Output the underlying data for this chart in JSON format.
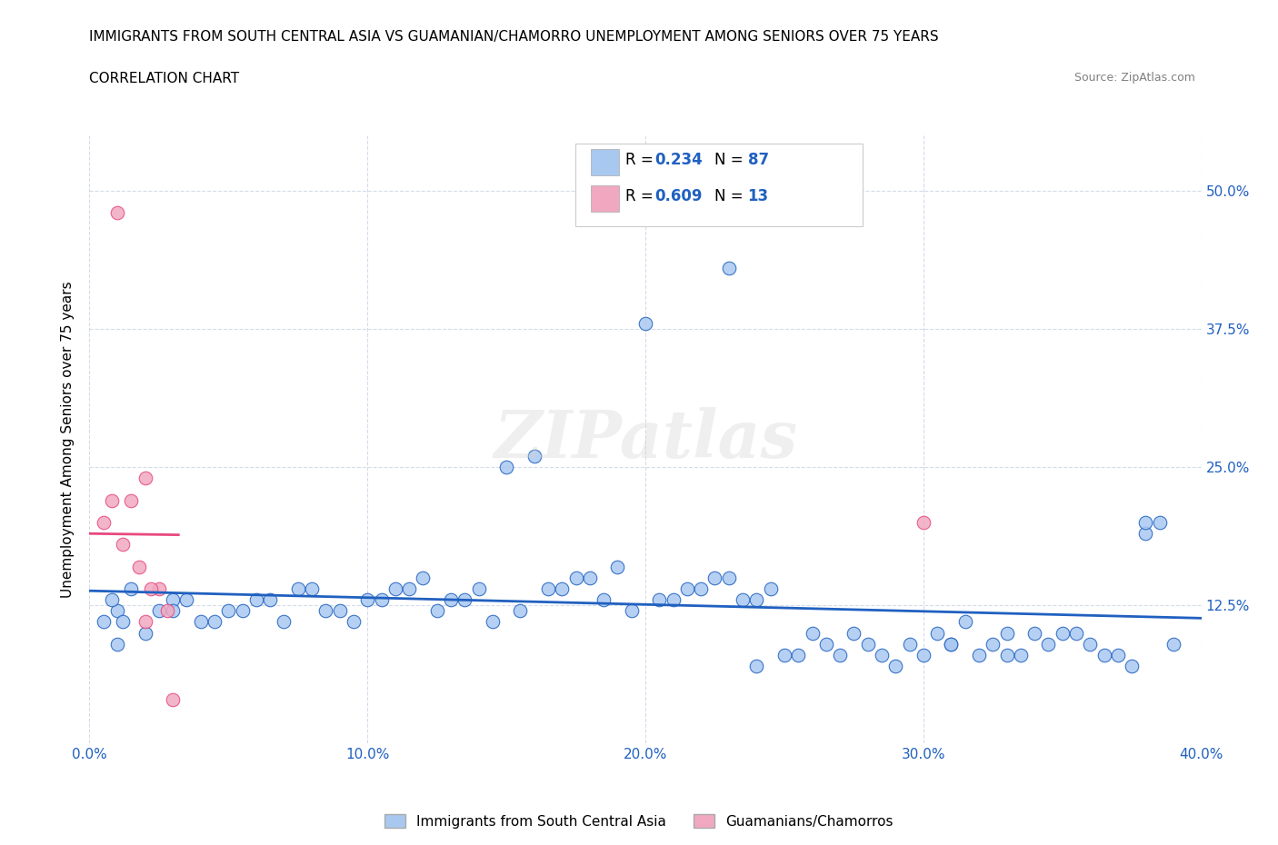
{
  "title_line1": "IMMIGRANTS FROM SOUTH CENTRAL ASIA VS GUAMANIAN/CHAMORRO UNEMPLOYMENT AMONG SENIORS OVER 75 YEARS",
  "title_line2": "CORRELATION CHART",
  "source_text": "Source: ZipAtlas.com",
  "ylabel": "Unemployment Among Seniors over 75 years",
  "xlim": [
    0.0,
    0.4
  ],
  "ylim": [
    0.0,
    0.55
  ],
  "xtick_labels": [
    "0.0%",
    "10.0%",
    "20.0%",
    "30.0%",
    "40.0%"
  ],
  "xtick_vals": [
    0.0,
    0.1,
    0.2,
    0.3,
    0.4
  ],
  "ytick_labels_right": [
    "12.5%",
    "25.0%",
    "37.5%",
    "50.0%"
  ],
  "ytick_vals_right": [
    0.125,
    0.25,
    0.375,
    0.5
  ],
  "blue_color": "#a8c8f0",
  "pink_color": "#f0a8c0",
  "blue_line_color": "#2060c0",
  "pink_line_color": "#e84880",
  "grid_color": "#d0d8e8",
  "legend_bottom_blue": "Immigrants from South Central Asia",
  "legend_bottom_pink": "Guamanians/Chamorros",
  "watermark": "ZIPatlas",
  "blue_R": 0.234,
  "blue_N": 87,
  "pink_R": 0.609,
  "pink_N": 13,
  "blue_scatter_x": [
    0.02,
    0.01,
    0.005,
    0.008,
    0.01,
    0.015,
    0.012,
    0.025,
    0.03,
    0.04,
    0.05,
    0.06,
    0.07,
    0.08,
    0.09,
    0.1,
    0.11,
    0.12,
    0.13,
    0.14,
    0.15,
    0.16,
    0.17,
    0.18,
    0.19,
    0.2,
    0.21,
    0.22,
    0.23,
    0.24,
    0.03,
    0.035,
    0.045,
    0.055,
    0.065,
    0.075,
    0.085,
    0.095,
    0.105,
    0.115,
    0.125,
    0.135,
    0.145,
    0.155,
    0.165,
    0.175,
    0.185,
    0.195,
    0.205,
    0.215,
    0.225,
    0.235,
    0.245,
    0.255,
    0.265,
    0.275,
    0.285,
    0.295,
    0.305,
    0.315,
    0.325,
    0.335,
    0.345,
    0.355,
    0.365,
    0.375,
    0.385,
    0.32,
    0.28,
    0.38,
    0.33,
    0.29,
    0.31,
    0.27,
    0.26,
    0.25,
    0.24,
    0.23,
    0.39,
    0.35,
    0.36,
    0.37,
    0.34,
    0.33,
    0.38,
    0.31,
    0.3
  ],
  "blue_scatter_y": [
    0.1,
    0.12,
    0.11,
    0.13,
    0.09,
    0.14,
    0.11,
    0.12,
    0.13,
    0.11,
    0.12,
    0.13,
    0.11,
    0.14,
    0.12,
    0.13,
    0.14,
    0.15,
    0.13,
    0.14,
    0.25,
    0.26,
    0.14,
    0.15,
    0.16,
    0.38,
    0.13,
    0.14,
    0.15,
    0.13,
    0.12,
    0.13,
    0.11,
    0.12,
    0.13,
    0.14,
    0.12,
    0.11,
    0.13,
    0.14,
    0.12,
    0.13,
    0.11,
    0.12,
    0.14,
    0.15,
    0.13,
    0.12,
    0.13,
    0.14,
    0.15,
    0.13,
    0.14,
    0.08,
    0.09,
    0.1,
    0.08,
    0.09,
    0.1,
    0.11,
    0.09,
    0.08,
    0.09,
    0.1,
    0.08,
    0.07,
    0.2,
    0.08,
    0.09,
    0.19,
    0.1,
    0.07,
    0.09,
    0.08,
    0.1,
    0.08,
    0.07,
    0.43,
    0.09,
    0.1,
    0.09,
    0.08,
    0.1,
    0.08,
    0.2,
    0.09,
    0.08
  ],
  "pink_scatter_x": [
    0.01,
    0.005,
    0.008,
    0.012,
    0.015,
    0.02,
    0.025,
    0.018,
    0.022,
    0.028,
    0.02,
    0.3,
    0.03
  ],
  "pink_scatter_y": [
    0.48,
    0.2,
    0.22,
    0.18,
    0.22,
    0.24,
    0.14,
    0.16,
    0.14,
    0.12,
    0.11,
    0.2,
    0.04
  ]
}
